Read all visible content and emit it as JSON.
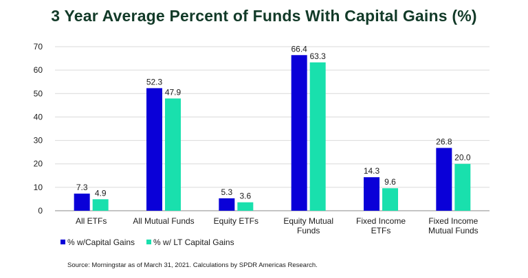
{
  "title": "3 Year Average Percent of Funds With Capital Gains (%)",
  "source": "Source: Morningstar as of March 31, 2021. Calculations by SPDR Americas Research.",
  "chart_data": {
    "type": "bar",
    "title": "3 Year Average Percent of Funds With Capital Gains (%)",
    "categories": [
      [
        "All ETFs"
      ],
      [
        "All Mutual Funds"
      ],
      [
        "Equity ETFs"
      ],
      [
        "Equity Mutual",
        "Funds"
      ],
      [
        "Fixed Income",
        "ETFs"
      ],
      [
        "Fixed Income",
        "Mutual Funds"
      ]
    ],
    "series": [
      {
        "name": "% w/Capital Gains",
        "color": "#0a00d8",
        "values": [
          7.3,
          52.3,
          5.3,
          66.4,
          14.3,
          26.8
        ]
      },
      {
        "name": "% w/ LT Capital Gains",
        "color": "#19e0ad",
        "values": [
          4.9,
          47.9,
          3.6,
          63.3,
          9.6,
          20.0
        ]
      }
    ],
    "ylim": [
      0,
      70
    ],
    "yticks": [
      0,
      10,
      20,
      30,
      40,
      50,
      60,
      70
    ],
    "grid": true,
    "legend": "bottom-left",
    "xlabel": "",
    "ylabel": ""
  }
}
